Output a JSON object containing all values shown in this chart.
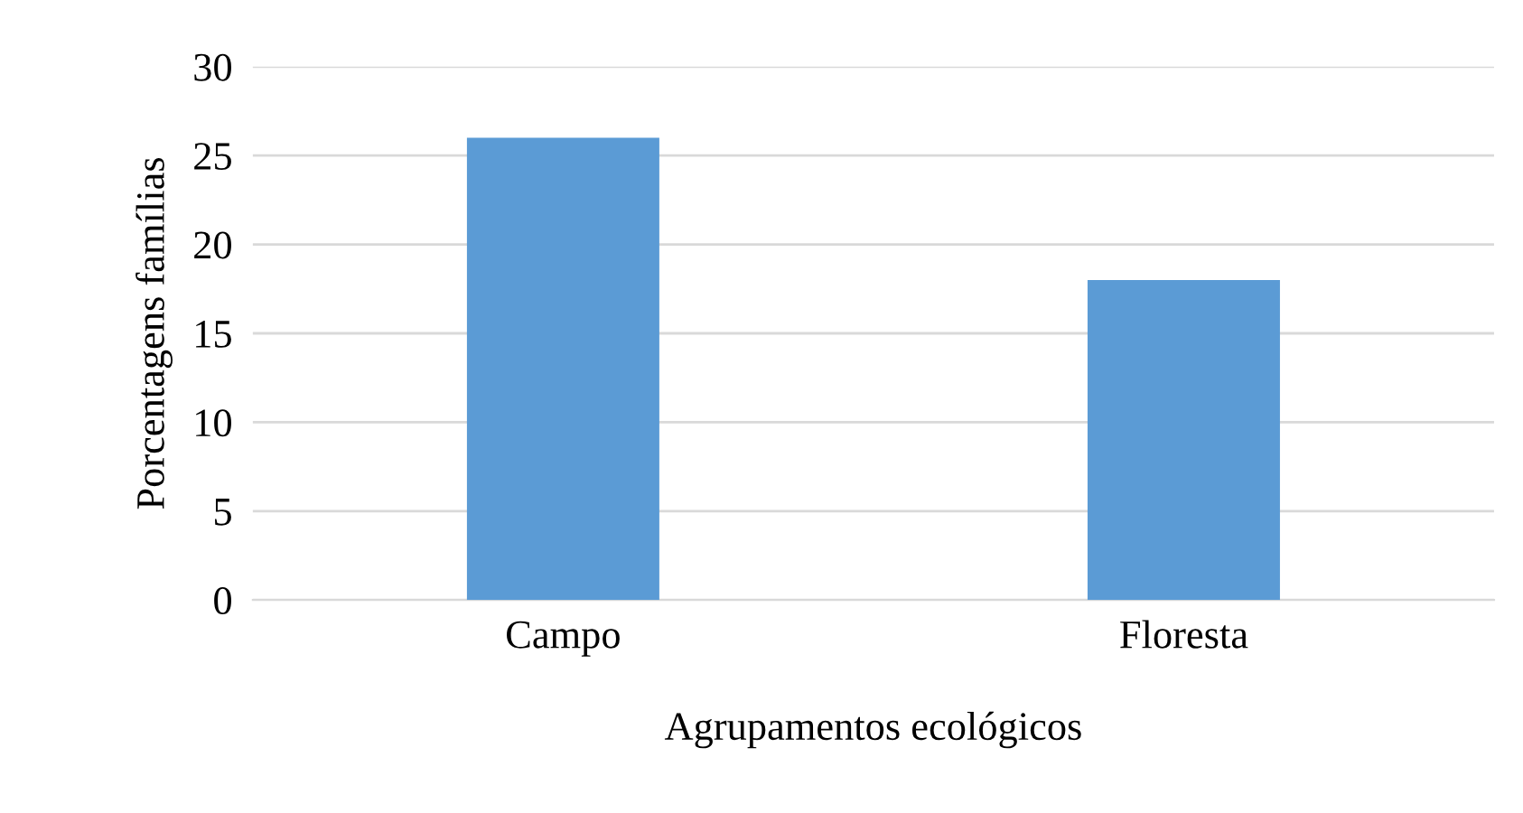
{
  "chart_data": {
    "type": "bar",
    "xlabel": "Agrupamentos ecológicos",
    "ylabel": "Porcentagens famílias",
    "categories": [
      "Campo",
      "Floresta"
    ],
    "values": [
      26,
      18
    ],
    "color": "#5b9bd5",
    "ylim": [
      0,
      30
    ],
    "yticks": [
      0,
      5,
      10,
      15,
      20,
      25,
      30
    ],
    "grid": "y"
  }
}
